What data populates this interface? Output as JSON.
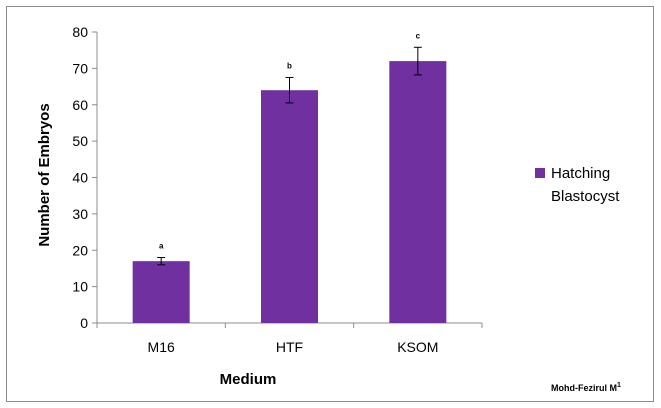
{
  "chart_data": {
    "type": "bar",
    "categories": [
      "M16",
      "HTF",
      "KSOM"
    ],
    "series": [
      {
        "name": "Hatching Blastocyst",
        "values": [
          17,
          64,
          72
        ],
        "errors": [
          1,
          3.5,
          3.8
        ],
        "sig_labels": [
          "a",
          "b",
          "c"
        ],
        "color": "#7030a0"
      }
    ],
    "xlabel": "Medium",
    "ylabel": "Number of Embryos",
    "ylim": [
      0,
      80
    ],
    "yticks": [
      0,
      10,
      20,
      30,
      40,
      50,
      60,
      70,
      80
    ],
    "grid": false,
    "legend_position": "right",
    "legend_lines": [
      "Hatching",
      "Blastocyst"
    ]
  },
  "credit": {
    "text": "Mohd-Fezirul M",
    "superscript": "1"
  }
}
